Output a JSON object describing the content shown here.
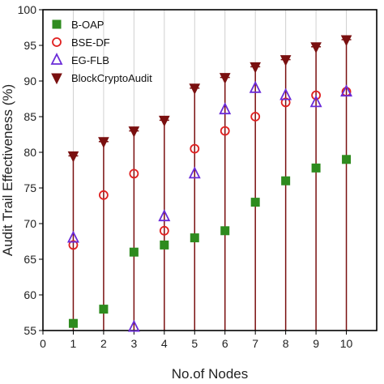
{
  "chart_data": {
    "type": "scatter",
    "title": "",
    "xlabel": "No.of Nodes",
    "ylabel": "Audit Trail Effectiveness (%)",
    "xlim": [
      0,
      11
    ],
    "ylim": [
      55,
      100
    ],
    "x_ticks": [
      0,
      1,
      2,
      3,
      4,
      5,
      6,
      7,
      8,
      9,
      10
    ],
    "y_ticks": [
      55,
      60,
      65,
      70,
      75,
      80,
      85,
      90,
      95,
      100
    ],
    "grid": "vertical",
    "legend_position": "top-left",
    "x": [
      1,
      2,
      3,
      4,
      5,
      6,
      7,
      8,
      9,
      10
    ],
    "series": [
      {
        "name": "B-OAP",
        "marker": "square",
        "color": "#2e8b1e",
        "values": [
          56,
          58,
          66,
          67,
          68,
          69,
          73,
          76,
          77.8,
          79
        ]
      },
      {
        "name": "BSE-DF",
        "marker": "circle-open",
        "color": "#e02020",
        "values": [
          67,
          74,
          77,
          69,
          80.5,
          83,
          85,
          87,
          88,
          88.5
        ]
      },
      {
        "name": "EG-FLB",
        "marker": "triangle-up-open",
        "color": "#6a2bd8",
        "values": [
          68,
          null,
          55.5,
          71,
          77,
          86,
          89,
          88,
          87,
          88.5
        ]
      },
      {
        "name": "BlockCryptoAudit",
        "marker": "triangle-down",
        "color": "#7a1010",
        "values": [
          79.5,
          81.5,
          83,
          84.5,
          89,
          90.5,
          92,
          93,
          94.8,
          95.8
        ],
        "error_bars_to": 55
      }
    ]
  }
}
